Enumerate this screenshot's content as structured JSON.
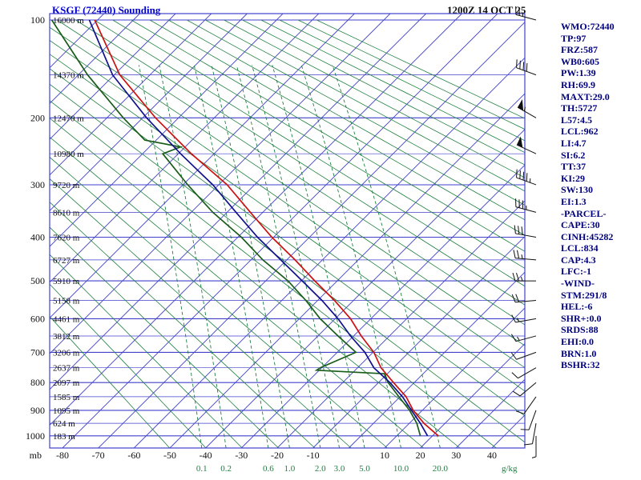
{
  "header": {
    "title": "KSGF (72440) Sounding",
    "datetime": "1200Z 14 OCT 25"
  },
  "indices": {
    "lines": [
      "WMO:72440",
      "TP:97",
      "FRZ:587",
      "WB0:605",
      "PW:1.39",
      "RH:69.9",
      "MAXT:29.0",
      "TH:5727",
      "L57:4.5",
      "LCL:962",
      "LI:4.7",
      "SI:6.2",
      "TT:37",
      "KI:29",
      "SW:130",
      "EI:1.3",
      "-PARCEL-",
      "CAPE:30",
      "CINH:45282",
      "LCL:834",
      "CAP:4.3",
      "LFC:-1",
      "-WIND-",
      "STM:291/8",
      "HEL:-6",
      "SHR+:0.0",
      "SRDS:88",
      "EHI:0.0",
      "BRN:1.0",
      "BSHR:32"
    ]
  },
  "chart_data": {
    "type": "line",
    "variant": "stuve_skewt_sounding",
    "station": "KSGF (72440)",
    "valid_time": "1200Z 14 OCT 25",
    "pressure_axis_label": "mb",
    "pressure_ticks": [
      100,
      200,
      300,
      400,
      500,
      600,
      700,
      800,
      900,
      1000
    ],
    "pressure_range": [
      95,
      1050
    ],
    "temp_ticks": [
      -80,
      -70,
      -60,
      -50,
      -40,
      -30,
      -20,
      -10,
      10,
      20,
      30,
      40
    ],
    "temp_unit": "C",
    "mixing_ratios": [
      0.1,
      0.2,
      0.6,
      1.0,
      2.0,
      3.0,
      5.0,
      10.0,
      20.0
    ],
    "mixing_ratio_unit": "g/kg",
    "dry_adiabats_theta_k": {
      "from": 220,
      "to": 510,
      "step": 10
    },
    "heights": [
      [
        100,
        "16000 m"
      ],
      [
        150,
        "14370 m"
      ],
      [
        200,
        "12470 m"
      ],
      [
        250,
        "10980 m"
      ],
      [
        300,
        "9720 m"
      ],
      [
        350,
        "8610 m"
      ],
      [
        400,
        "7620 m"
      ],
      [
        450,
        "6727 m"
      ],
      [
        500,
        "5910 m"
      ],
      [
        550,
        "5158 m"
      ],
      [
        600,
        "4461 m"
      ],
      [
        650,
        "3812 m"
      ],
      [
        700,
        "3206 m"
      ],
      [
        750,
        "2637 m"
      ],
      [
        800,
        "2097 m"
      ],
      [
        850,
        "1585 m"
      ],
      [
        900,
        "1095 m"
      ],
      [
        950,
        "624 m"
      ],
      [
        1000,
        "183 m"
      ]
    ],
    "temperature_profile": [
      [
        1000,
        25
      ],
      [
        950,
        21
      ],
      [
        900,
        18
      ],
      [
        850,
        16
      ],
      [
        800,
        12.5
      ],
      [
        750,
        9
      ],
      [
        700,
        7
      ],
      [
        650,
        3.5
      ],
      [
        600,
        0.5
      ],
      [
        550,
        -4
      ],
      [
        500,
        -9.5
      ],
      [
        450,
        -15
      ],
      [
        400,
        -21.5
      ],
      [
        350,
        -27.5
      ],
      [
        300,
        -34
      ],
      [
        250,
        -44
      ],
      [
        200,
        -54
      ],
      [
        150,
        -64
      ],
      [
        100,
        -71
      ]
    ],
    "dewpoint_profile": [
      [
        1000,
        20
      ],
      [
        950,
        19
      ],
      [
        900,
        17
      ],
      [
        850,
        14
      ],
      [
        800,
        11
      ],
      [
        770,
        10
      ],
      [
        758,
        -9
      ],
      [
        750,
        -8
      ],
      [
        700,
        2
      ],
      [
        650,
        -3
      ],
      [
        600,
        -8
      ],
      [
        550,
        -12
      ],
      [
        500,
        -17
      ],
      [
        450,
        -24
      ],
      [
        400,
        -30
      ],
      [
        350,
        -38
      ],
      [
        300,
        -45
      ],
      [
        250,
        -52
      ],
      [
        240,
        -47
      ],
      [
        230,
        -57
      ],
      [
        200,
        -63
      ],
      [
        150,
        -73
      ],
      [
        100,
        -83
      ]
    ],
    "wetbulb_profile": [
      [
        1000,
        22
      ],
      [
        950,
        20
      ],
      [
        900,
        17.5
      ],
      [
        850,
        15
      ],
      [
        800,
        11.5
      ],
      [
        750,
        7
      ],
      [
        700,
        4.5
      ],
      [
        650,
        0.5
      ],
      [
        600,
        -3
      ],
      [
        550,
        -7.5
      ],
      [
        500,
        -13
      ],
      [
        450,
        -19
      ],
      [
        400,
        -25.5
      ],
      [
        350,
        -31.5
      ],
      [
        300,
        -38
      ],
      [
        250,
        -47
      ],
      [
        200,
        -56.5
      ],
      [
        150,
        -66
      ],
      [
        100,
        -72.5
      ]
    ],
    "winds_p_dir_spd": [
      [
        100,
        285,
        25
      ],
      [
        150,
        290,
        40
      ],
      [
        200,
        300,
        55
      ],
      [
        250,
        295,
        50
      ],
      [
        300,
        290,
        45
      ],
      [
        350,
        285,
        35
      ],
      [
        400,
        280,
        30
      ],
      [
        450,
        275,
        25
      ],
      [
        500,
        270,
        25
      ],
      [
        550,
        265,
        20
      ],
      [
        600,
        260,
        15
      ],
      [
        650,
        255,
        15
      ],
      [
        700,
        250,
        10
      ],
      [
        750,
        240,
        10
      ],
      [
        800,
        230,
        10
      ],
      [
        850,
        215,
        10
      ],
      [
        900,
        200,
        10
      ],
      [
        950,
        190,
        10
      ],
      [
        1000,
        180,
        5
      ]
    ],
    "colors": {
      "temperature": "#cc1111",
      "dewpoint": "#1a5c1a",
      "wetbulb": "#11118c",
      "grid_blue": "#4040cc",
      "grid_green": "#1f8040",
      "labels": "#101010",
      "title": "#0000cc",
      "indices": "#00007e",
      "barbs": "#101010"
    }
  }
}
